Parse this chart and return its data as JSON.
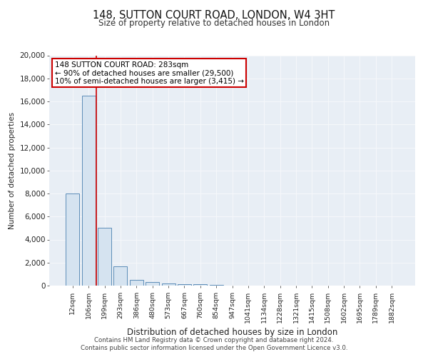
{
  "title_line1": "148, SUTTON COURT ROAD, LONDON, W4 3HT",
  "title_line2": "Size of property relative to detached houses in London",
  "xlabel": "Distribution of detached houses by size in London",
  "ylabel": "Number of detached properties",
  "bar_labels": [
    "12sqm",
    "106sqm",
    "199sqm",
    "293sqm",
    "386sqm",
    "480sqm",
    "573sqm",
    "667sqm",
    "760sqm",
    "854sqm",
    "947sqm",
    "1041sqm",
    "1134sqm",
    "1228sqm",
    "1321sqm",
    "1415sqm",
    "1508sqm",
    "1602sqm",
    "1695sqm",
    "1789sqm",
    "1882sqm"
  ],
  "bar_values": [
    8000,
    16500,
    5000,
    1700,
    500,
    280,
    200,
    150,
    100,
    60,
    0,
    0,
    0,
    0,
    0,
    0,
    0,
    0,
    0,
    0,
    0
  ],
  "bar_color": "#d5e3f0",
  "bar_edge_color": "#5b8db8",
  "property_line_x": 1.5,
  "property_line_color": "#cc0000",
  "annotation_text": "148 SUTTON COURT ROAD: 283sqm\n← 90% of detached houses are smaller (29,500)\n10% of semi-detached houses are larger (3,415) →",
  "annotation_box_color": "#cc0000",
  "ylim": [
    0,
    20000
  ],
  "yticks": [
    0,
    2000,
    4000,
    6000,
    8000,
    10000,
    12000,
    14000,
    16000,
    18000,
    20000
  ],
  "footer_line1": "Contains HM Land Registry data © Crown copyright and database right 2024.",
  "footer_line2": "Contains public sector information licensed under the Open Government Licence v3.0.",
  "plot_bg_color": "#e8eef5",
  "grid_color": "#f5f7fa",
  "fig_bg_color": "#ffffff"
}
